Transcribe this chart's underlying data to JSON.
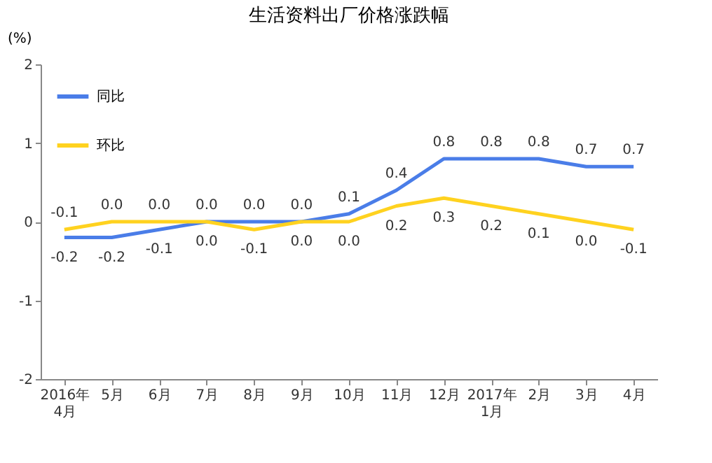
{
  "chart_data": {
    "type": "line",
    "title": "生活资料出厂价格涨跌幅",
    "ylabel": "(%)",
    "categories": [
      "2016年\n4月",
      "5月",
      "6月",
      "7月",
      "8月",
      "9月",
      "10月",
      "11月",
      "12月",
      "2017年\n1月",
      "2月",
      "3月",
      "4月"
    ],
    "series": [
      {
        "name": "同比",
        "color": "#4a7de8",
        "values": [
          -0.2,
          -0.2,
          -0.1,
          0.0,
          0.0,
          0.0,
          0.1,
          0.4,
          0.8,
          0.8,
          0.8,
          0.7,
          0.7
        ],
        "value_labels": [
          "-0.2",
          "-0.2",
          "-0.1",
          "0.0",
          "0.0",
          "0.0",
          "0.1",
          "0.4",
          "0.8",
          "0.8",
          "0.8",
          "0.7",
          "0.7"
        ]
      },
      {
        "name": "环比",
        "color": "#ffd21f",
        "values": [
          -0.1,
          0.0,
          0.0,
          0.0,
          -0.1,
          0.0,
          0.0,
          0.2,
          0.3,
          0.2,
          0.1,
          0.0,
          -0.1
        ],
        "value_labels": [
          "-0.1",
          "0.0",
          "0.0",
          "0.0",
          "-0.1",
          "0.0",
          "0.0",
          "0.2",
          "0.3",
          "0.2",
          "0.1",
          "0.0",
          "-0.1"
        ]
      }
    ],
    "ylim": [
      -2,
      2
    ],
    "yticks": [
      -2,
      -1,
      0,
      1,
      2
    ],
    "legend": "top left",
    "line_style": "solid"
  }
}
